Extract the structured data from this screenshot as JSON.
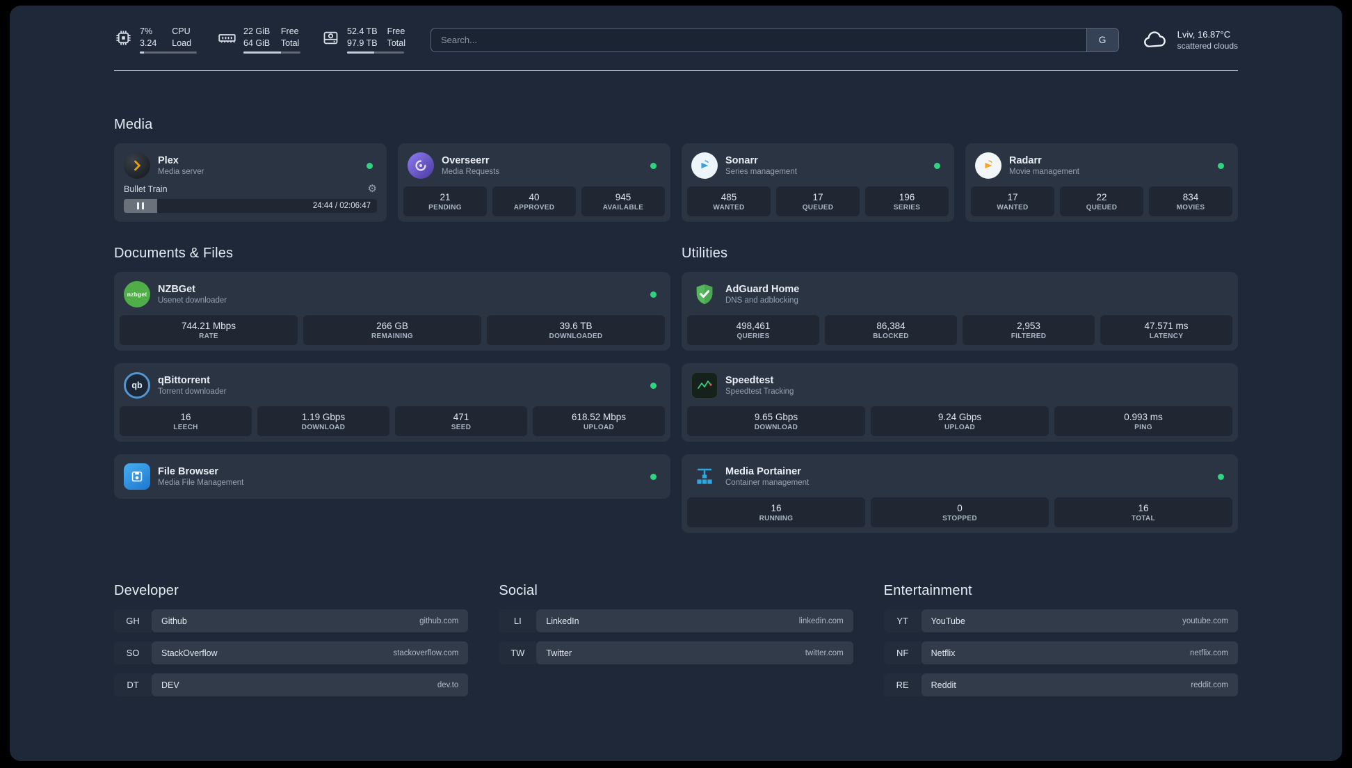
{
  "topbar": {
    "resources": [
      {
        "icon": "cpu-icon",
        "value1": "7%",
        "label1": "CPU",
        "value2": "3.24",
        "label2": "Load",
        "progress": 7
      },
      {
        "icon": "memory-icon",
        "value1": "22 GiB",
        "label1": "Free",
        "value2": "64 GiB",
        "label2": "Total",
        "progress": 66
      },
      {
        "icon": "disk-icon",
        "value1": "52.4 TB",
        "label1": "Free",
        "value2": "97.9 TB",
        "label2": "Total",
        "progress": 47
      }
    ],
    "search": {
      "placeholder": "Search...",
      "provider_label": "G"
    },
    "weather": {
      "icon": "cloud-icon",
      "line1": "Lviv, 16.87°C",
      "line2": "scattered clouds"
    }
  },
  "sections": {
    "media": {
      "title": "Media",
      "cards": [
        {
          "name": "Plex",
          "desc": "Media server",
          "icon": "plex-icon",
          "status": "online",
          "player": {
            "track": "Bullet Train",
            "time": "24:44 / 02:06:47"
          }
        },
        {
          "name": "Overseerr",
          "desc": "Media Requests",
          "icon": "overseerr-icon",
          "status": "online",
          "stats": [
            {
              "value": "21",
              "label": "PENDING"
            },
            {
              "value": "40",
              "label": "APPROVED"
            },
            {
              "value": "945",
              "label": "AVAILABLE"
            }
          ]
        },
        {
          "name": "Sonarr",
          "desc": "Series management",
          "icon": "sonarr-icon",
          "status": "online",
          "stats": [
            {
              "value": "485",
              "label": "WANTED"
            },
            {
              "value": "17",
              "label": "QUEUED"
            },
            {
              "value": "196",
              "label": "SERIES"
            }
          ]
        },
        {
          "name": "Radarr",
          "desc": "Movie management",
          "icon": "radarr-icon",
          "status": "online",
          "stats": [
            {
              "value": "17",
              "label": "WANTED"
            },
            {
              "value": "22",
              "label": "QUEUED"
            },
            {
              "value": "834",
              "label": "MOVIES"
            }
          ]
        }
      ]
    },
    "documents": {
      "title": "Documents & Files",
      "cards": [
        {
          "name": "NZBGet",
          "desc": "Usenet downloader",
          "icon": "nzbget-icon",
          "status": "online",
          "stats": [
            {
              "value": "744.21 Mbps",
              "label": "RATE"
            },
            {
              "value": "266 GB",
              "label": "REMAINING"
            },
            {
              "value": "39.6 TB",
              "label": "DOWNLOADED"
            }
          ]
        },
        {
          "name": "qBittorrent",
          "desc": "Torrent downloader",
          "icon": "qbittorrent-icon",
          "status": "online",
          "stats": [
            {
              "value": "16",
              "label": "LEECH"
            },
            {
              "value": "1.19 Gbps",
              "label": "DOWNLOAD"
            },
            {
              "value": "471",
              "label": "SEED"
            },
            {
              "value": "618.52 Mbps",
              "label": "UPLOAD"
            }
          ]
        },
        {
          "name": "File Browser",
          "desc": "Media File Management",
          "icon": "filebrowser-icon",
          "status": "online",
          "stats": []
        }
      ]
    },
    "utilities": {
      "title": "Utilities",
      "cards": [
        {
          "name": "AdGuard Home",
          "desc": "DNS and adblocking",
          "icon": "adguard-icon",
          "stats": [
            {
              "value": "498,461",
              "label": "QUERIES"
            },
            {
              "value": "86,384",
              "label": "BLOCKED"
            },
            {
              "value": "2,953",
              "label": "FILTERED"
            },
            {
              "value": "47.571 ms",
              "label": "LATENCY"
            }
          ]
        },
        {
          "name": "Speedtest",
          "desc": "Speedtest Tracking",
          "icon": "speedtest-icon",
          "stats": [
            {
              "value": "9.65 Gbps",
              "label": "DOWNLOAD"
            },
            {
              "value": "9.24 Gbps",
              "label": "UPLOAD"
            },
            {
              "value": "0.993 ms",
              "label": "PING"
            }
          ]
        },
        {
          "name": "Media Portainer",
          "desc": "Container management",
          "icon": "portainer-icon",
          "status": "online",
          "stats": [
            {
              "value": "16",
              "label": "RUNNING"
            },
            {
              "value": "0",
              "label": "STOPPED"
            },
            {
              "value": "16",
              "label": "TOTAL"
            }
          ]
        }
      ]
    },
    "bookmarks": [
      {
        "title": "Developer",
        "items": [
          {
            "abbr": "GH",
            "name": "Github",
            "url": "github.com"
          },
          {
            "abbr": "SO",
            "name": "StackOverflow",
            "url": "stackoverflow.com"
          },
          {
            "abbr": "DT",
            "name": "DEV",
            "url": "dev.to"
          }
        ]
      },
      {
        "title": "Social",
        "items": [
          {
            "abbr": "LI",
            "name": "LinkedIn",
            "url": "linkedin.com"
          },
          {
            "abbr": "TW",
            "name": "Twitter",
            "url": "twitter.com"
          }
        ]
      },
      {
        "title": "Entertainment",
        "items": [
          {
            "abbr": "YT",
            "name": "YouTube",
            "url": "youtube.com"
          },
          {
            "abbr": "NF",
            "name": "Netflix",
            "url": "netflix.com"
          },
          {
            "abbr": "RE",
            "name": "Reddit",
            "url": "reddit.com"
          }
        ]
      }
    ]
  },
  "colors": {
    "status_online": "#2ed47f",
    "panel_background": "#1e2838",
    "plex_accent": "#e5a00d",
    "sonarr_accent": "#38a1db",
    "radarr_accent": "#f5a623",
    "nzbget_label": "nzbget",
    "qbittorrent_label": "qb"
  }
}
